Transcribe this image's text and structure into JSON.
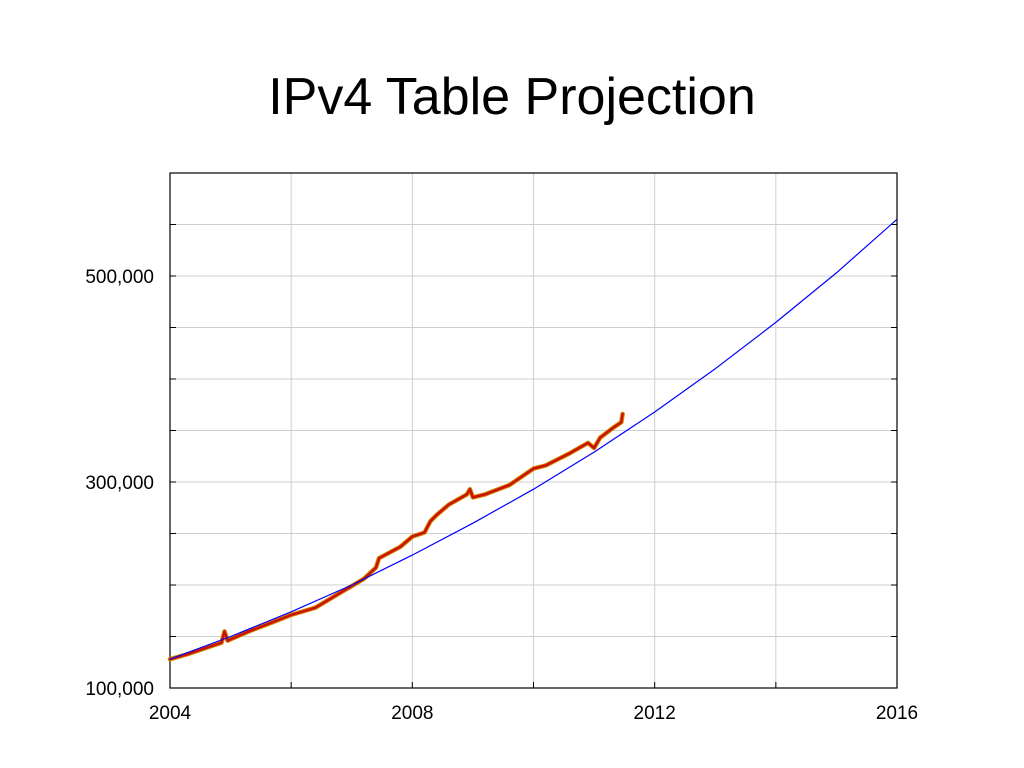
{
  "slide": {
    "title": "IPv4 Table Projection"
  },
  "chart_data": {
    "type": "line",
    "title": "IPv4 Table Projection",
    "xlabel": "",
    "ylabel": "",
    "xlim": [
      2004,
      2016
    ],
    "ylim": [
      100000,
      600000
    ],
    "x_ticks": [
      2004,
      2008,
      2012,
      2016
    ],
    "x_tick_labels": [
      "2004",
      "2008",
      "2012",
      "2016"
    ],
    "y_ticks": [
      100000,
      150000,
      200000,
      250000,
      300000,
      350000,
      400000,
      450000,
      500000,
      550000
    ],
    "y_tick_labels": [
      "100,000",
      "",
      "",
      "",
      "300,000",
      "",
      "",
      "",
      "500,000",
      ""
    ],
    "grid": true,
    "legend": "none",
    "series": [
      {
        "role": "projection",
        "color": "#0000ff",
        "x": [
          2004,
          2005,
          2006,
          2007,
          2008,
          2009,
          2010,
          2011,
          2012,
          2013,
          2014,
          2015,
          2016
        ],
        "y": [
          128000,
          150000,
          174000,
          200000,
          229000,
          260000,
          293000,
          329000,
          368000,
          410000,
          455000,
          503000,
          555000
        ]
      },
      {
        "role": "measured",
        "color": "#cc1100",
        "x": [
          2004.0,
          2004.3,
          2004.6,
          2004.85,
          2004.9,
          2004.95,
          2005.3,
          2005.7,
          2006.0,
          2006.4,
          2006.8,
          2007.2,
          2007.4,
          2007.45,
          2007.8,
          2008.0,
          2008.2,
          2008.3,
          2008.4,
          2008.6,
          2008.9,
          2008.95,
          2009.0,
          2009.2,
          2009.6,
          2010.0,
          2010.2,
          2010.6,
          2010.9,
          2011.0,
          2011.1,
          2011.3,
          2011.45,
          2011.47
        ],
        "y": [
          128000,
          133000,
          139000,
          144000,
          155000,
          146000,
          155000,
          164000,
          171000,
          178000,
          192000,
          206000,
          217000,
          226000,
          237000,
          247000,
          251000,
          262000,
          268000,
          278000,
          288000,
          293000,
          285000,
          288000,
          297000,
          313000,
          316000,
          328000,
          338000,
          333000,
          343000,
          352000,
          358000,
          366000
        ]
      }
    ]
  }
}
